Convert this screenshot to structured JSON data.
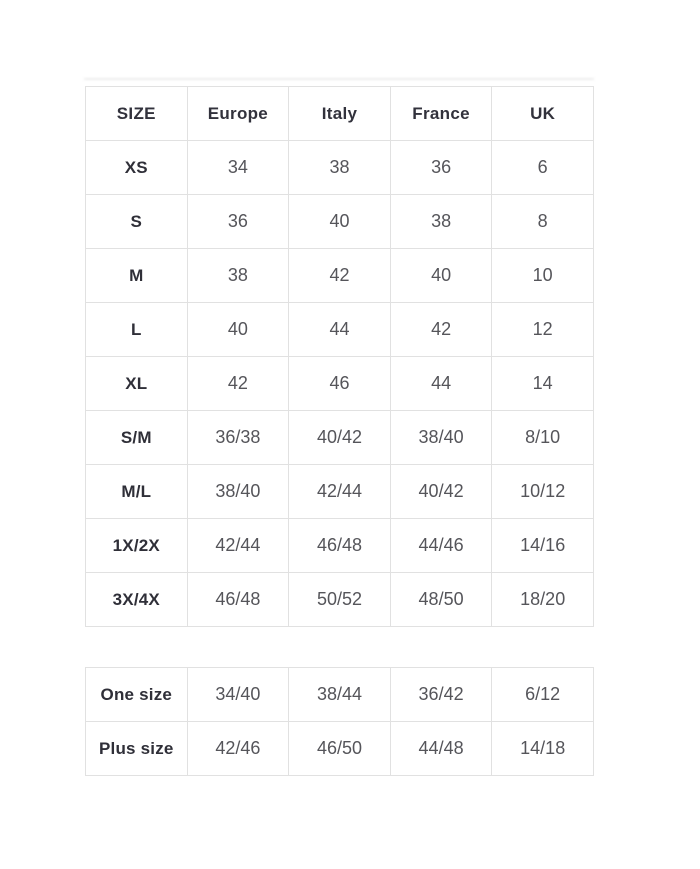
{
  "colors": {
    "background": "#ffffff",
    "grid_border": "#e1e1e1",
    "header_text": "#32323c",
    "label_text": "#2f2f38",
    "value_text": "#55555a"
  },
  "chart_data": [
    {
      "type": "table",
      "columns": [
        "SIZE",
        "Europe",
        "Italy",
        "France",
        "UK"
      ],
      "rows": [
        [
          "XS",
          "34",
          "38",
          "36",
          "6"
        ],
        [
          "S",
          "36",
          "40",
          "38",
          "8"
        ],
        [
          "M",
          "38",
          "42",
          "40",
          "10"
        ],
        [
          "L",
          "40",
          "44",
          "42",
          "12"
        ],
        [
          "XL",
          "42",
          "46",
          "44",
          "14"
        ],
        [
          "S/M",
          "36/38",
          "40/42",
          "38/40",
          "8/10"
        ],
        [
          "M/L",
          "38/40",
          "42/44",
          "40/42",
          "10/12"
        ],
        [
          "1X/2X",
          "42/44",
          "46/48",
          "44/46",
          "14/16"
        ],
        [
          "3X/4X",
          "46/48",
          "50/52",
          "48/50",
          "18/20"
        ]
      ],
      "layout": {
        "grid": "on",
        "header_row": true,
        "first_column_bold": true
      }
    },
    {
      "type": "table",
      "columns": [],
      "rows": [
        [
          "One size",
          "34/40",
          "38/44",
          "36/42",
          "6/12"
        ],
        [
          "Plus size",
          "42/46",
          "46/50",
          "44/48",
          "14/18"
        ]
      ],
      "layout": {
        "grid": "on",
        "header_row": false,
        "first_column_bold": true
      }
    }
  ]
}
